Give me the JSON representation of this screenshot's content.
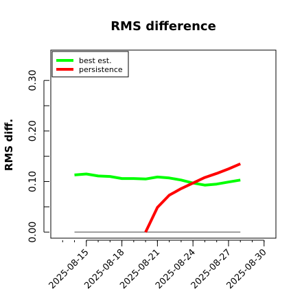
{
  "chart_data": {
    "type": "line",
    "title": "RMS difference",
    "xlabel": "",
    "ylabel": "RMS diff.",
    "x_tick_labels": [
      "2025-08-15",
      "2025-08-18",
      "2025-08-21",
      "2025-08-24",
      "2025-08-27",
      "2025-08-30"
    ],
    "y_tick_labels": [
      "0.00",
      "0.10",
      "0.20",
      "0.30"
    ],
    "y_ticks": [
      0.0,
      0.05,
      0.1,
      0.15,
      0.2,
      0.25,
      0.3
    ],
    "xlim": [
      "2025-08-12",
      "2025-08-31"
    ],
    "ylim": [
      -0.012,
      0.36
    ],
    "legend_position": "top-left",
    "grid": false,
    "zero_line": {
      "y": 0.0,
      "x_from": "2025-08-14",
      "x_to": "2025-08-28",
      "color": "#666666"
    },
    "series": [
      {
        "name": "best est.",
        "color": "#00ff00",
        "points": [
          {
            "x": "2025-08-14",
            "y": 0.113
          },
          {
            "x": "2025-08-15",
            "y": 0.115
          },
          {
            "x": "2025-08-16",
            "y": 0.111
          },
          {
            "x": "2025-08-17",
            "y": 0.11
          },
          {
            "x": "2025-08-18",
            "y": 0.106
          },
          {
            "x": "2025-08-19",
            "y": 0.106
          },
          {
            "x": "2025-08-20",
            "y": 0.105
          },
          {
            "x": "2025-08-21",
            "y": 0.109
          },
          {
            "x": "2025-08-22",
            "y": 0.107
          },
          {
            "x": "2025-08-23",
            "y": 0.103
          },
          {
            "x": "2025-08-24",
            "y": 0.097
          },
          {
            "x": "2025-08-25",
            "y": 0.093
          },
          {
            "x": "2025-08-26",
            "y": 0.095
          },
          {
            "x": "2025-08-27",
            "y": 0.099
          },
          {
            "x": "2025-08-28",
            "y": 0.103
          }
        ]
      },
      {
        "name": "persistence",
        "color": "#ff0000",
        "points": [
          {
            "x": "2025-08-20",
            "y": 0.0
          },
          {
            "x": "2025-08-21",
            "y": 0.049
          },
          {
            "x": "2025-08-22",
            "y": 0.073
          },
          {
            "x": "2025-08-23",
            "y": 0.086
          },
          {
            "x": "2025-08-24",
            "y": 0.097
          },
          {
            "x": "2025-08-25",
            "y": 0.108
          },
          {
            "x": "2025-08-26",
            "y": 0.116
          },
          {
            "x": "2025-08-27",
            "y": 0.125
          },
          {
            "x": "2025-08-28",
            "y": 0.135
          }
        ]
      }
    ]
  }
}
